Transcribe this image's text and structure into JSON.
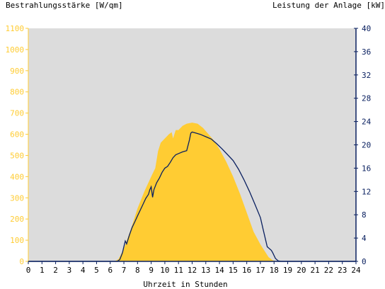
{
  "colors": {
    "plot_bg": "#dcdcdc",
    "irradiance": "#ffcc33",
    "power": "#0a2060",
    "left_axis_text": "#ffcc33",
    "right_axis_text": "#0a2060",
    "bottom_axis_text": "#000000"
  },
  "chart_data": {
    "type": "area",
    "title_left": "Bestrahlungsstärke [W/qm]",
    "title_right": "Leistung der Anlage [kW]",
    "xlabel": "Uhrzeit in Stunden",
    "xlim": [
      0,
      24
    ],
    "ylim_left": [
      0,
      1100
    ],
    "ylim_right": [
      0,
      40
    ],
    "x_ticks": [
      "0",
      "1",
      "2",
      "3",
      "4",
      "5",
      "6",
      "7",
      "8",
      "9",
      "10",
      "11",
      "12",
      "13",
      "14",
      "15",
      "16",
      "17",
      "18",
      "19",
      "20",
      "21",
      "22",
      "23",
      "24"
    ],
    "y_left_ticks": [
      "0",
      "100",
      "200",
      "300",
      "400",
      "500",
      "600",
      "700",
      "800",
      "900",
      "1000",
      "1100"
    ],
    "y_right_ticks": [
      "0",
      "4",
      "8",
      "12",
      "16",
      "20",
      "24",
      "28",
      "32",
      "36",
      "40"
    ],
    "grid": false,
    "series": [
      {
        "name": "Bestrahlungsstärke [W/qm]",
        "axis": "left",
        "type": "area",
        "x": [
          0,
          6.3,
          6.6,
          7.0,
          7.5,
          8.0,
          8.5,
          9.0,
          9.3,
          9.5,
          9.7,
          10.0,
          10.3,
          10.5,
          10.6,
          10.8,
          11.0,
          11.3,
          11.6,
          12.0,
          12.4,
          12.8,
          13.2,
          13.6,
          14.0,
          14.5,
          15.0,
          15.5,
          16.0,
          16.5,
          17.0,
          17.3,
          17.6,
          17.9,
          18.1,
          18.3,
          18.5,
          24
        ],
        "values": [
          0,
          0,
          10,
          60,
          150,
          250,
          330,
          400,
          440,
          520,
          560,
          580,
          600,
          610,
          580,
          620,
          620,
          640,
          650,
          655,
          650,
          630,
          600,
          570,
          530,
          470,
          400,
          320,
          230,
          140,
          80,
          50,
          20,
          5,
          2,
          0,
          0,
          0
        ]
      },
      {
        "name": "Leistung der Anlage [kW]",
        "axis": "right",
        "type": "line",
        "x": [
          0,
          6.5,
          6.7,
          6.9,
          7.0,
          7.1,
          7.2,
          7.4,
          7.6,
          7.8,
          8.0,
          8.2,
          8.4,
          8.6,
          8.8,
          8.9,
          9.0,
          9.1,
          9.2,
          9.4,
          9.6,
          9.8,
          10.0,
          10.2,
          10.4,
          10.6,
          10.8,
          11.0,
          11.3,
          11.6,
          11.8,
          11.9,
          12.0,
          12.3,
          12.6,
          13.0,
          13.4,
          13.8,
          14.2,
          14.6,
          15.0,
          15.4,
          15.8,
          16.2,
          16.6,
          17.0,
          17.2,
          17.5,
          17.8,
          17.9,
          18.1,
          18.3,
          18.5,
          24
        ],
        "values": [
          0,
          0,
          0.3,
          1.5,
          2.5,
          3.5,
          3.0,
          4.5,
          5.8,
          6.8,
          7.8,
          8.8,
          9.8,
          10.8,
          11.5,
          12.3,
          12.8,
          11.0,
          12.3,
          13.5,
          14.3,
          15.3,
          16.0,
          16.3,
          17.0,
          17.8,
          18.3,
          18.5,
          18.8,
          19.0,
          20.8,
          22.0,
          22.2,
          22.0,
          21.8,
          21.4,
          21.0,
          20.2,
          19.3,
          18.3,
          17.3,
          15.8,
          14.0,
          12.0,
          9.8,
          7.5,
          5.5,
          2.5,
          1.9,
          1.5,
          0.5,
          0.1,
          0,
          0
        ]
      }
    ]
  }
}
